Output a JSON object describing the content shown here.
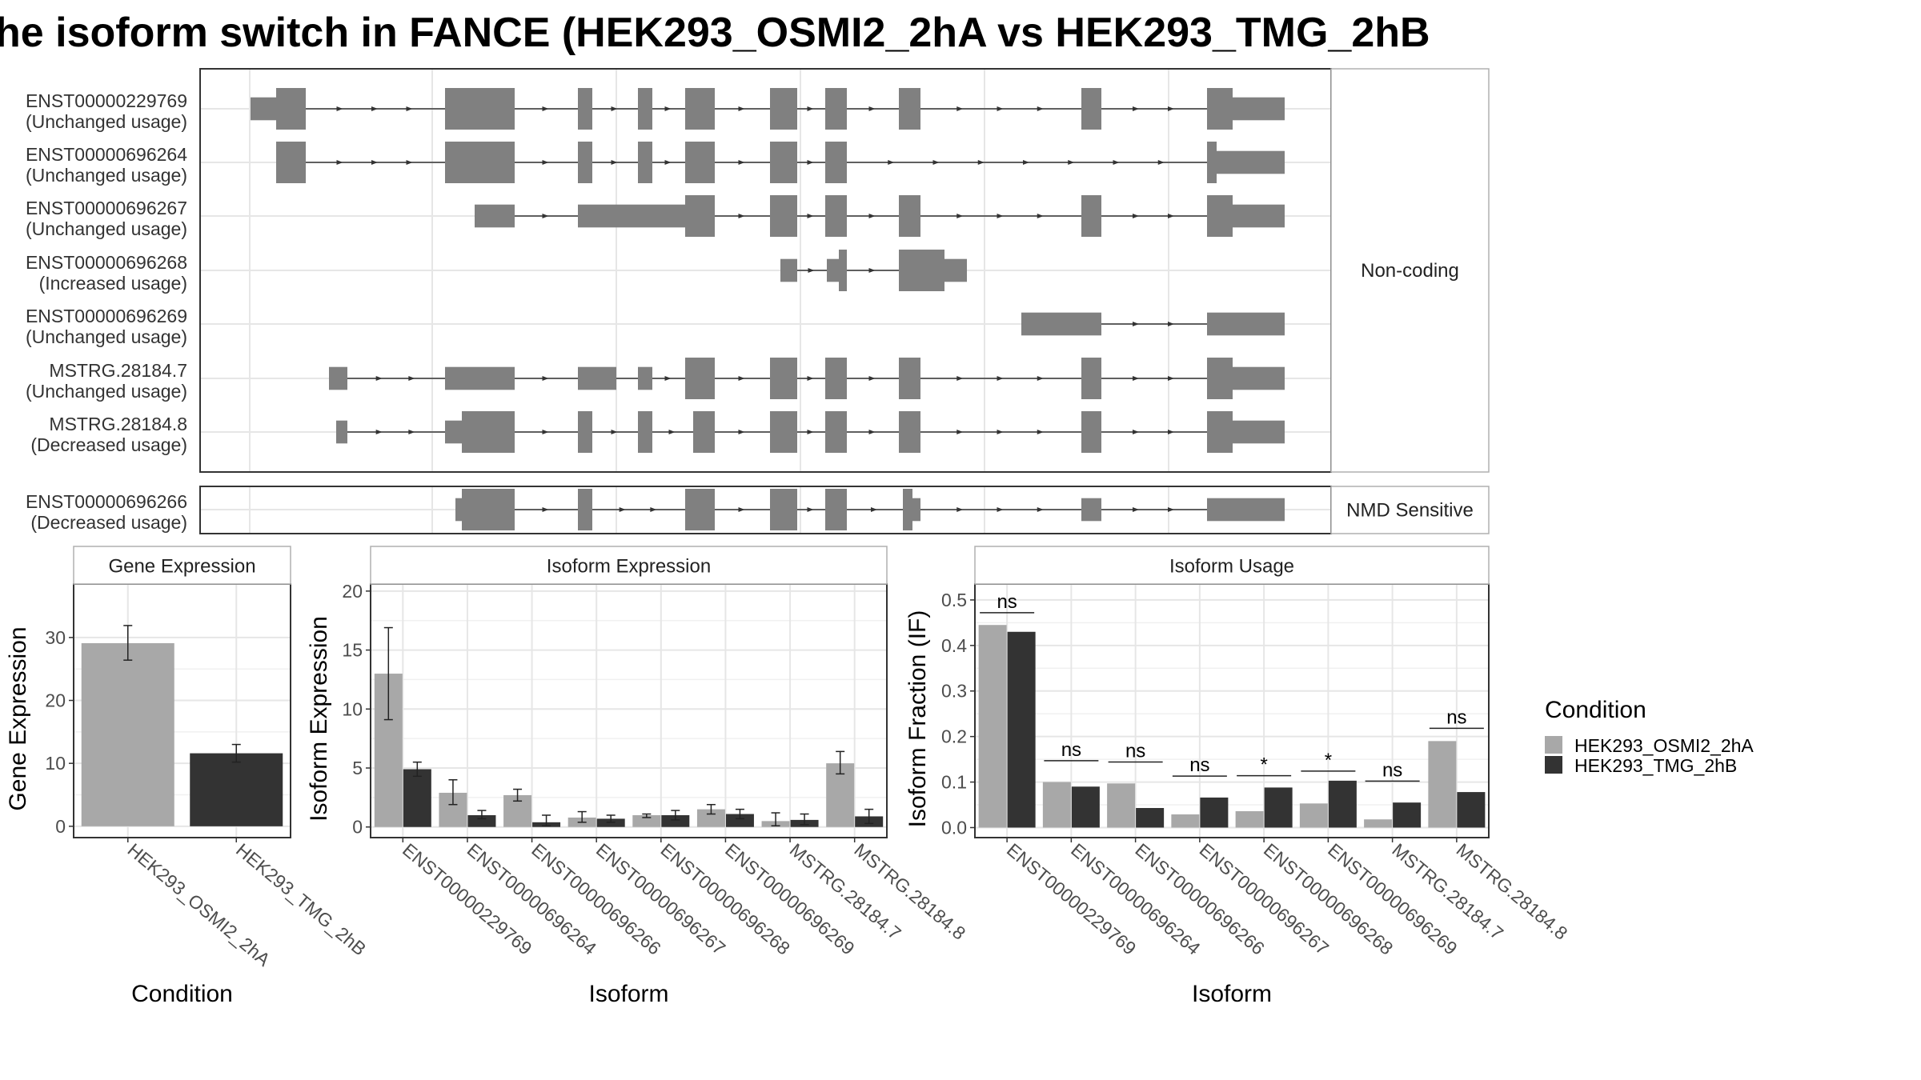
{
  "title": "he isoform switch in FANCE (HEK293_OSMI2_2hA vs HEK293_TMG_2hB",
  "colors": {
    "cond_a": "#a8a8a8",
    "cond_b": "#333333",
    "exon": "#808080",
    "grid": "#e6e6e6",
    "strip": "#ffffff",
    "panel_border": "#333333"
  },
  "structure_panel": {
    "groups": [
      {
        "label": "Non-coding",
        "isoforms": [
          {
            "id": "ENST00000229769",
            "usage": "(Unchanged usage)"
          },
          {
            "id": "ENST00000696264",
            "usage": "(Unchanged usage)"
          },
          {
            "id": "ENST00000696267",
            "usage": "(Unchanged usage)"
          },
          {
            "id": "ENST00000696268",
            "usage": "(Increased usage)"
          },
          {
            "id": "ENST00000696269",
            "usage": "(Unchanged usage)"
          },
          {
            "id": "MSTRG.28184.7",
            "usage": "(Unchanged usage)"
          },
          {
            "id": "MSTRG.28184.8",
            "usage": "(Decreased usage)"
          }
        ]
      },
      {
        "label": "NMD Sensitive",
        "isoforms": [
          {
            "id": "ENST00000696266",
            "usage": "(Decreased usage)"
          }
        ]
      }
    ]
  },
  "legend": {
    "title": "Condition",
    "entries": [
      "HEK293_OSMI2_2hA",
      "HEK293_TMG_2hB"
    ]
  },
  "chart_data": [
    {
      "type": "bar",
      "title": "Gene Expression",
      "xlabel": "Condition",
      "ylabel": "Gene Expression",
      "categories": [
        "HEK293_OSMI2_2hA",
        "HEK293_TMG_2hB"
      ],
      "values": [
        29.1,
        11.6
      ],
      "err_low": [
        26.4,
        10.2
      ],
      "err_high": [
        31.9,
        13.0
      ],
      "ylim": [
        -1.8,
        38.5
      ],
      "yticks": [
        0,
        10,
        20,
        30
      ]
    },
    {
      "type": "bar",
      "title": "Isoform Expression",
      "xlabel": "Isoform",
      "ylabel": "Isoform Expression",
      "categories": [
        "ENST00000229769",
        "ENST00000696264",
        "ENST00000696266",
        "ENST00000696267",
        "ENST00000696268",
        "ENST00000696269",
        "MSTRG.28184.7",
        "MSTRG.28184.8"
      ],
      "series": [
        {
          "name": "HEK293_OSMI2_2hA",
          "values": [
            13.0,
            2.9,
            2.7,
            0.8,
            1.0,
            1.5,
            0.5,
            5.4
          ],
          "err_low": [
            9.1,
            1.9,
            2.2,
            0.4,
            0.8,
            1.1,
            0.1,
            4.5
          ],
          "err_high": [
            16.9,
            4.0,
            3.2,
            1.3,
            1.1,
            1.9,
            1.2,
            6.4
          ]
        },
        {
          "name": "HEK293_TMG_2hB",
          "values": [
            4.9,
            1.0,
            0.4,
            0.7,
            1.0,
            1.1,
            0.6,
            0.9
          ],
          "err_low": [
            4.3,
            0.7,
            0.1,
            0.4,
            0.6,
            0.7,
            0.2,
            0.3
          ],
          "err_high": [
            5.5,
            1.4,
            1.0,
            1.0,
            1.4,
            1.5,
            1.1,
            1.5
          ]
        }
      ],
      "ylim": [
        -0.9,
        20.6
      ],
      "yticks": [
        0,
        5,
        10,
        15,
        20
      ]
    },
    {
      "type": "bar",
      "title": "Isoform Usage",
      "xlabel": "Isoform",
      "ylabel": "Isoform Fraction (IF)",
      "categories": [
        "ENST00000229769",
        "ENST00000696264",
        "ENST00000696266",
        "ENST00000696267",
        "ENST00000696268",
        "ENST00000696269",
        "MSTRG.28184.7",
        "MSTRG.28184.8"
      ],
      "series": [
        {
          "name": "HEK293_OSMI2_2hA",
          "values": [
            0.445,
            0.1,
            0.097,
            0.029,
            0.036,
            0.053,
            0.018,
            0.19
          ]
        },
        {
          "name": "HEK293_TMG_2hB",
          "values": [
            0.43,
            0.09,
            0.043,
            0.066,
            0.088,
            0.103,
            0.055,
            0.078
          ]
        }
      ],
      "annotations": [
        "ns",
        "ns",
        "ns",
        "ns",
        "*",
        "*",
        "ns",
        "ns"
      ],
      "annotation_y": [
        0.472,
        0.147,
        0.144,
        0.113,
        0.114,
        0.124,
        0.102,
        0.218
      ],
      "ylim": [
        -0.022,
        0.535
      ],
      "yticks": [
        0.0,
        0.1,
        0.2,
        0.3,
        0.4,
        0.5
      ],
      "ytick_labels": [
        "0.0",
        "0.1",
        "0.2",
        "0.3",
        "0.4",
        "0.5"
      ]
    }
  ]
}
